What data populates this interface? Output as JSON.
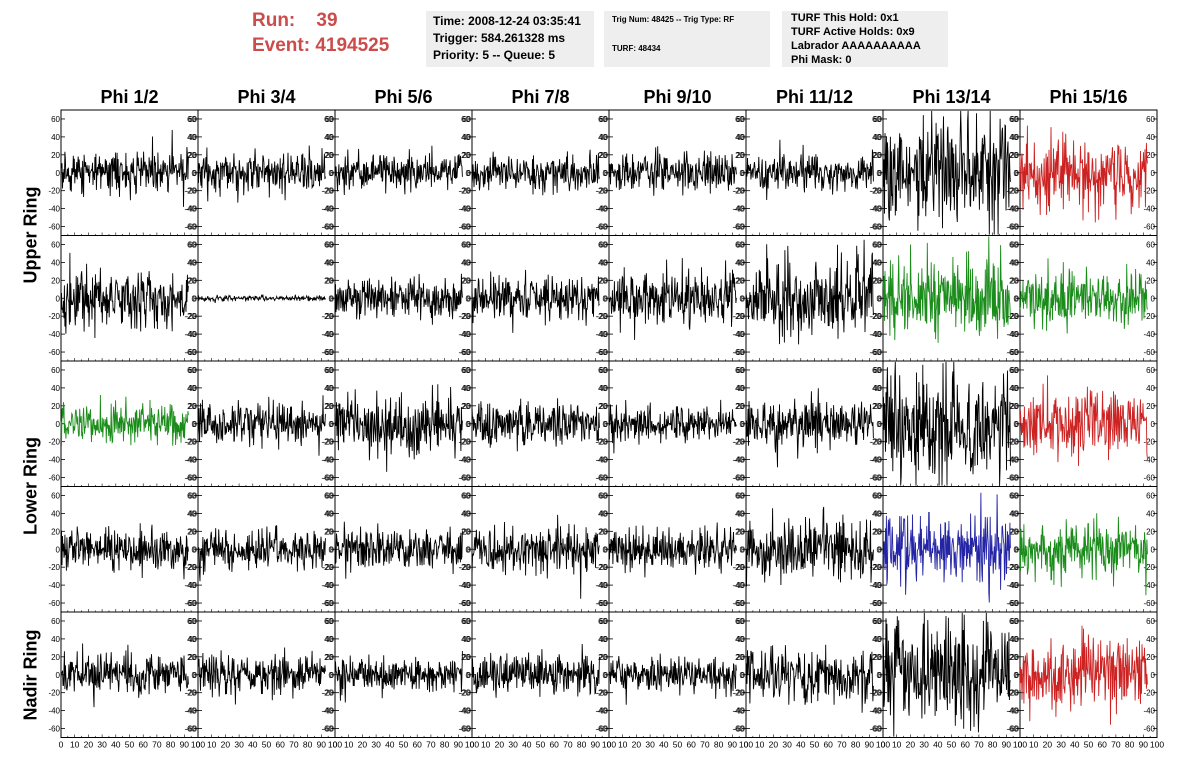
{
  "header": {
    "run_line": "Run:    39",
    "event_line": "Event: 4194525"
  },
  "info_time": {
    "line1": "Time: 2008-12-24 03:35:41",
    "line2": "Trigger: 584.261328 ms",
    "line3": "Priority: 5 -- Queue: 5"
  },
  "info_trigger": {
    "line1": "Trig Num: 48425 -- Trig Type: RF",
    "line2": "TURF: 48434"
  },
  "info_turf": {
    "line1": "TURF This Hold: 0x1",
    "line2": "TURF Active Holds: 0x9",
    "line3": "Labrador AAAAAAAAAA",
    "line4": "Phi Mask: 0"
  },
  "columns": [
    "Phi 1/2",
    "Phi 3/4",
    "Phi 5/6",
    "Phi 7/8",
    "Phi 9/10",
    "Phi 11/12",
    "Phi 13/14",
    "Phi 15/16"
  ],
  "row_groups": [
    "Upper Ring",
    "Lower Ring",
    "Nadir Ring"
  ],
  "colors": {
    "black": "#000000",
    "red": "#cc2222",
    "green": "#1a8c1a",
    "blue": "#2424a6",
    "header_red": "#cc4b4b",
    "box_bg": "#eeeeee"
  },
  "chart_data": {
    "type": "line",
    "xlim": [
      0,
      100
    ],
    "ylim": [
      -70,
      70
    ],
    "y_ticks": [
      -60,
      -40,
      -20,
      0,
      20,
      40,
      60
    ],
    "x_tick_labels": [
      "0",
      "10",
      "20",
      "30",
      "40",
      "50",
      "60",
      "70",
      "80",
      "90",
      "100"
    ],
    "samples_per_trace": 260,
    "trace_x_range": [
      0,
      93
    ],
    "grid": false,
    "panels": [
      {
        "row": 0,
        "col": 0,
        "color": "black",
        "amplitude": 16
      },
      {
        "row": 0,
        "col": 1,
        "color": "black",
        "amplitude": 16
      },
      {
        "row": 0,
        "col": 2,
        "color": "black",
        "amplitude": 14
      },
      {
        "row": 0,
        "col": 3,
        "color": "black",
        "amplitude": 13
      },
      {
        "row": 0,
        "col": 4,
        "color": "black",
        "amplitude": 14
      },
      {
        "row": 0,
        "col": 5,
        "color": "black",
        "amplitude": 14
      },
      {
        "row": 0,
        "col": 6,
        "color": "black",
        "amplitude": 42
      },
      {
        "row": 0,
        "col": 7,
        "color": "red",
        "amplitude": 25
      },
      {
        "row": 1,
        "col": 0,
        "color": "black",
        "amplitude": 22
      },
      {
        "row": 1,
        "col": 1,
        "color": "black",
        "amplitude": 2
      },
      {
        "row": 1,
        "col": 2,
        "color": "black",
        "amplitude": 16
      },
      {
        "row": 1,
        "col": 3,
        "color": "black",
        "amplitude": 18
      },
      {
        "row": 1,
        "col": 4,
        "color": "black",
        "amplitude": 20
      },
      {
        "row": 1,
        "col": 5,
        "color": "black",
        "amplitude": 30
      },
      {
        "row": 1,
        "col": 6,
        "color": "green",
        "amplitude": 30
      },
      {
        "row": 1,
        "col": 7,
        "color": "green",
        "amplitude": 22
      },
      {
        "row": 2,
        "col": 0,
        "color": "green",
        "amplitude": 15
      },
      {
        "row": 2,
        "col": 1,
        "color": "black",
        "amplitude": 16
      },
      {
        "row": 2,
        "col": 2,
        "color": "black",
        "amplitude": 24
      },
      {
        "row": 2,
        "col": 3,
        "color": "black",
        "amplitude": 16
      },
      {
        "row": 2,
        "col": 4,
        "color": "black",
        "amplitude": 13
      },
      {
        "row": 2,
        "col": 5,
        "color": "black",
        "amplitude": 20
      },
      {
        "row": 2,
        "col": 6,
        "color": "black",
        "amplitude": 42
      },
      {
        "row": 2,
        "col": 7,
        "color": "red",
        "amplitude": 26
      },
      {
        "row": 3,
        "col": 0,
        "color": "black",
        "amplitude": 16
      },
      {
        "row": 3,
        "col": 1,
        "color": "black",
        "amplitude": 15
      },
      {
        "row": 3,
        "col": 2,
        "color": "black",
        "amplitude": 16
      },
      {
        "row": 3,
        "col": 3,
        "color": "black",
        "amplitude": 18
      },
      {
        "row": 3,
        "col": 4,
        "color": "black",
        "amplitude": 16
      },
      {
        "row": 3,
        "col": 5,
        "color": "black",
        "amplitude": 24
      },
      {
        "row": 3,
        "col": 6,
        "color": "blue",
        "amplitude": 28
      },
      {
        "row": 3,
        "col": 7,
        "color": "green",
        "amplitude": 22
      },
      {
        "row": 4,
        "col": 0,
        "color": "black",
        "amplitude": 17
      },
      {
        "row": 4,
        "col": 1,
        "color": "black",
        "amplitude": 14
      },
      {
        "row": 4,
        "col": 2,
        "color": "black",
        "amplitude": 14
      },
      {
        "row": 4,
        "col": 3,
        "color": "black",
        "amplitude": 16
      },
      {
        "row": 4,
        "col": 4,
        "color": "black",
        "amplitude": 13
      },
      {
        "row": 4,
        "col": 5,
        "color": "black",
        "amplitude": 22
      },
      {
        "row": 4,
        "col": 6,
        "color": "black",
        "amplitude": 40
      },
      {
        "row": 4,
        "col": 7,
        "color": "red",
        "amplitude": 28
      }
    ]
  }
}
